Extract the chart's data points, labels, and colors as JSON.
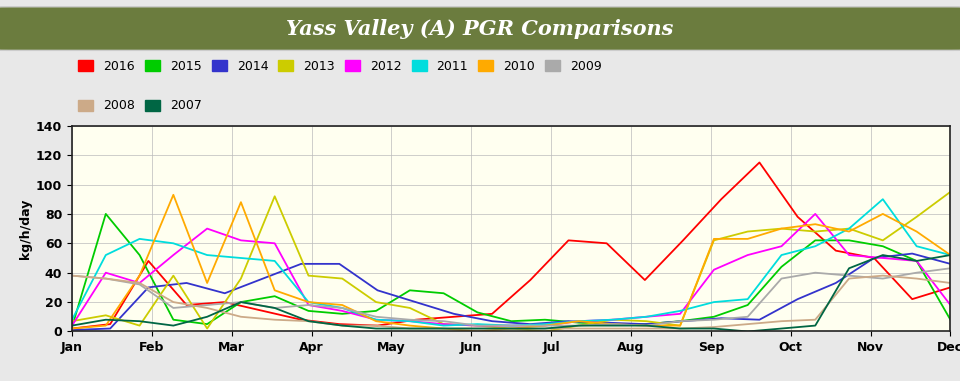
{
  "title": "Yass Valley (A) PGR Comparisons",
  "title_bg_color": "#6b7c3e",
  "title_text_color": "#ffffff",
  "ylabel": "kg/h/day",
  "plot_bg_color": "#fffff0",
  "outer_bg_color": "#e8e8e8",
  "ylim": [
    0,
    140
  ],
  "yticks": [
    0,
    20,
    40,
    60,
    80,
    100,
    120,
    140
  ],
  "months": [
    "Jan",
    "Feb",
    "Mar",
    "Apr",
    "May",
    "Jun",
    "Jul",
    "Aug",
    "Sep",
    "Oct",
    "Nov",
    "Dec"
  ],
  "years_order": [
    "2016",
    "2015",
    "2014",
    "2013",
    "2012",
    "2011",
    "2010",
    "2009",
    "2008",
    "2007"
  ],
  "series": {
    "2016": {
      "color": "#ff0000",
      "data": [
        2,
        5,
        48,
        18,
        20,
        14,
        8,
        5,
        4,
        8,
        10,
        12,
        35,
        62,
        60,
        35,
        62,
        90,
        115,
        78,
        55,
        50,
        22,
        30
      ]
    },
    "2015": {
      "color": "#00cc00",
      "data": [
        3,
        80,
        52,
        8,
        5,
        20,
        24,
        14,
        12,
        14,
        28,
        26,
        13,
        7,
        8,
        6,
        5,
        5,
        7,
        10,
        18,
        44,
        62,
        62,
        58,
        48,
        8
      ]
    },
    "2014": {
      "color": "#3333cc",
      "data": [
        1,
        2,
        30,
        33,
        26,
        36,
        46,
        46,
        28,
        20,
        12,
        7,
        5,
        7,
        6,
        5,
        7,
        9,
        8,
        22,
        33,
        50,
        53,
        46
      ]
    },
    "2013": {
      "color": "#cccc00",
      "data": [
        7,
        11,
        4,
        38,
        2,
        36,
        92,
        38,
        36,
        20,
        16,
        5,
        4,
        2,
        0,
        4,
        8,
        7,
        4,
        62,
        68,
        70,
        68,
        70,
        62,
        78,
        95
      ]
    },
    "2012": {
      "color": "#ff00ff",
      "data": [
        4,
        40,
        33,
        52,
        70,
        62,
        60,
        18,
        14,
        8,
        7,
        5,
        4,
        4,
        4,
        7,
        8,
        10,
        12,
        42,
        52,
        58,
        80,
        52,
        50,
        48,
        18
      ]
    },
    "2011": {
      "color": "#00dddd",
      "data": [
        8,
        52,
        63,
        60,
        52,
        50,
        48,
        20,
        16,
        8,
        7,
        4,
        5,
        4,
        5,
        7,
        8,
        10,
        14,
        20,
        22,
        52,
        58,
        70,
        90,
        58,
        52
      ]
    },
    "2010": {
      "color": "#ffaa00",
      "data": [
        2,
        4,
        38,
        93,
        33,
        88,
        28,
        20,
        18,
        7,
        4,
        2,
        0,
        2,
        4,
        7,
        5,
        4,
        4,
        63,
        63,
        70,
        73,
        68,
        80,
        68,
        52
      ]
    },
    "2009": {
      "color": "#aaaaaa",
      "data": [
        38,
        36,
        32,
        16,
        18,
        20,
        16,
        18,
        16,
        10,
        8,
        7,
        4,
        4,
        4,
        4,
        5,
        4,
        7,
        8,
        10,
        36,
        40,
        38,
        36,
        40,
        43
      ]
    },
    "2008": {
      "color": "#ccaa88",
      "data": [
        38,
        36,
        33,
        20,
        16,
        10,
        8,
        7,
        4,
        4,
        2,
        2,
        2,
        2,
        2,
        2,
        2,
        2,
        2,
        3,
        5,
        7,
        8,
        36,
        38,
        36,
        33
      ]
    },
    "2007": {
      "color": "#006644",
      "data": [
        4,
        8,
        7,
        4,
        10,
        20,
        16,
        7,
        4,
        2,
        2,
        2,
        2,
        2,
        2,
        4,
        4,
        4,
        2,
        2,
        0,
        2,
        4,
        43,
        52,
        48,
        52
      ]
    }
  }
}
